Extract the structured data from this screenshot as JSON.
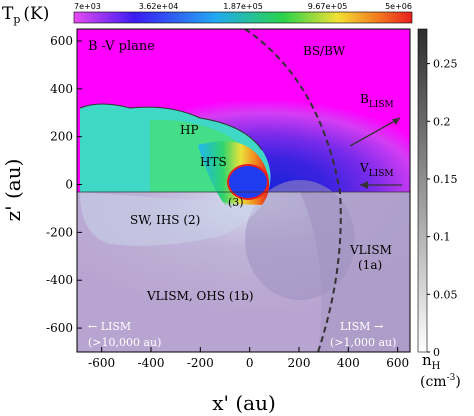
{
  "chart_data": {
    "type": "heatmap",
    "plane_label": "B -V plane",
    "xlabel": "x' (au)",
    "ylabel": "z' (au)",
    "xlim": [
      -700,
      650
    ],
    "ylim": [
      -700,
      650
    ],
    "x_ticks": [
      -600,
      -400,
      -200,
      0,
      200,
      400,
      600
    ],
    "y_ticks": [
      -600,
      -400,
      -200,
      0,
      200,
      400,
      600
    ],
    "top_colorbar": {
      "label": "Tp (K)",
      "quantity": "T",
      "subscript": "p",
      "unit": "(K)",
      "scale": "log",
      "tick_labels": [
        "7e+03",
        "3.62e+04",
        "1.87e+05",
        "9.67e+05",
        "5e+06"
      ],
      "colors": [
        "#e84bf2",
        "#3b1cf2",
        "#23a9f2",
        "#2bd34a",
        "#f2e035",
        "#f27a1e",
        "#e81e1e"
      ]
    },
    "right_colorbar": {
      "label": "nH (cm-3)",
      "quantity": "n",
      "subscript": "H",
      "unit": "(cm",
      "unit_exp": "-3",
      "unit_close": ")",
      "range": [
        0,
        0.28
      ],
      "tick_labels": [
        "0",
        "0.05",
        "0.1",
        "0.15",
        "0.2",
        "0.25"
      ],
      "colors": [
        "#ffffff",
        "#2d2d2d"
      ]
    },
    "annotations": {
      "bs_bw": "BS/BW",
      "hp": "HP",
      "hts": "HTS",
      "region3": "(3)",
      "sw_ihs": "SW, IHS (2)",
      "vlism_1a": "VLISM",
      "vlism_1a_sub": "(1a)",
      "vlism_ohs": "VLISM, OHS (1b)",
      "b_lism": "B",
      "b_lism_sub": "LISM",
      "v_lism": "V",
      "v_lism_sub": "LISM",
      "lism_left": "← LISM",
      "lism_left_sub": "(>10,000 au)",
      "lism_right": "LISM →",
      "lism_right_sub": "(>1,000 au)"
    },
    "colors": {
      "upper_background": "#ff00ff",
      "lower_background": "#c7b5d8",
      "boundary_line": "#333333"
    }
  }
}
